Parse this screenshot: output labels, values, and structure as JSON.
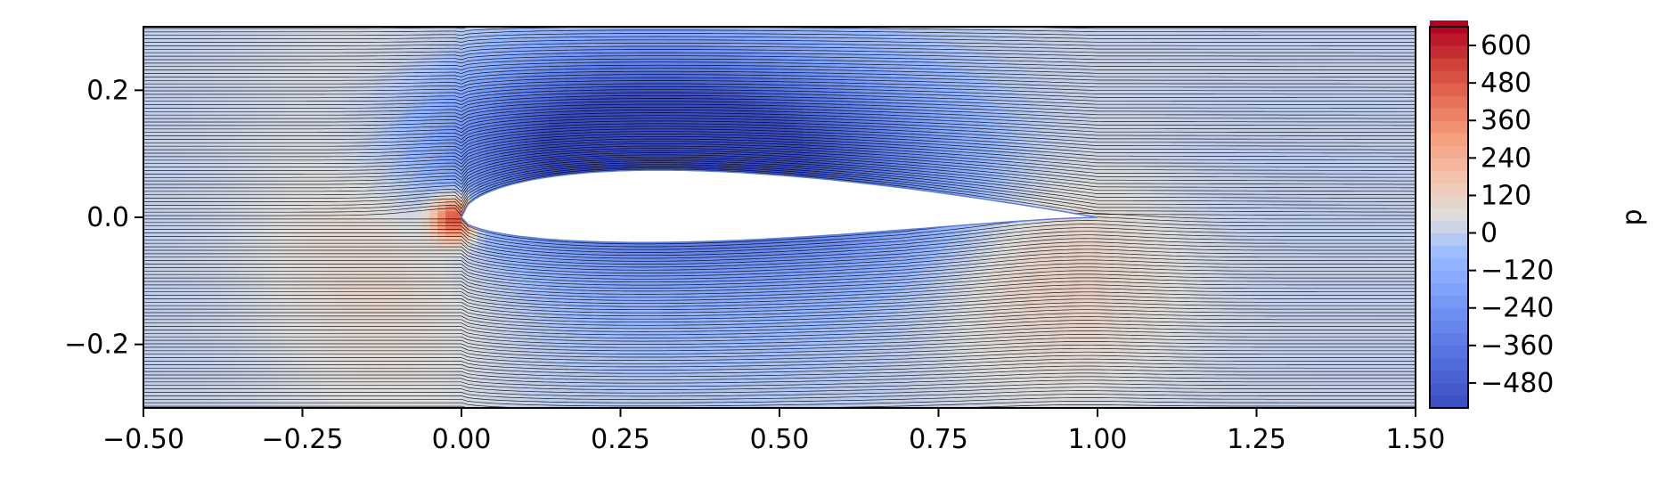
{
  "chart_data": {
    "type": "contourf+streamlines",
    "title": "",
    "xlabel": "",
    "ylabel": "",
    "xlim": [
      -0.5,
      1.5
    ],
    "ylim": [
      -0.3,
      0.3
    ],
    "xticks": [
      -0.5,
      -0.25,
      0.0,
      0.25,
      0.5,
      0.75,
      1.0,
      1.25,
      1.5
    ],
    "xtick_labels": [
      "−0.50",
      "−0.25",
      "0.00",
      "0.25",
      "0.50",
      "0.75",
      "1.00",
      "1.25",
      "1.50"
    ],
    "yticks": [
      0.2,
      0.0,
      -0.2
    ],
    "ytick_labels": [
      "0.2",
      "0.0",
      "−0.2"
    ],
    "grid": false,
    "field": {
      "name": "p",
      "colormap": "coolwarm",
      "vmin": -560,
      "vmax": 660,
      "peak_max": {
        "x": -0.01,
        "y": 0.0,
        "value": 660
      },
      "peak_min": {
        "x": 0.28,
        "y": 0.12,
        "value": -560
      }
    },
    "airfoil": {
      "leading_edge": [
        0.0,
        0.0
      ],
      "trailing_edge": [
        1.0,
        0.0
      ],
      "max_upper_y": 0.105,
      "min_lower_y": -0.055
    },
    "streamlines": {
      "count": 110,
      "color": "#000000"
    },
    "colorbar": {
      "label": "p",
      "ticks": [
        600,
        480,
        360,
        240,
        120,
        0,
        -120,
        -240,
        -360,
        -480
      ],
      "tick_labels": [
        "600",
        "480",
        "360",
        "240",
        "120",
        "0",
        "−120",
        "−240",
        "−360",
        "−480"
      ],
      "range": [
        -560,
        660
      ],
      "levels_step": 40
    }
  }
}
